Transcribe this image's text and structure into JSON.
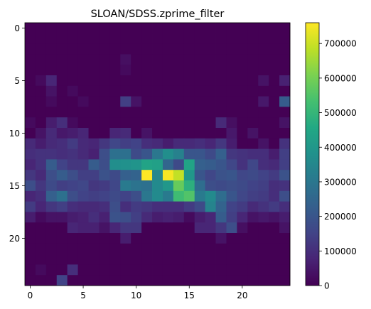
{
  "chart_data": {
    "type": "heatmap",
    "title": "SLOAN/SDSS.zprime_filter",
    "xlabel": "",
    "ylabel": "",
    "rows": 25,
    "cols": 25,
    "x_ticks": [
      0,
      5,
      10,
      15,
      20
    ],
    "y_ticks": [
      0,
      5,
      10,
      15,
      20
    ],
    "colorbar": {
      "min": 0,
      "max": 760000,
      "ticks": [
        0,
        100000,
        200000,
        300000,
        400000,
        500000,
        600000,
        700000
      ],
      "tick_labels": [
        "0",
        "100000",
        "200000",
        "300000",
        "400000",
        "500000",
        "600000",
        "700000"
      ],
      "colormap": "viridis"
    },
    "values": [
      [
        0,
        0,
        0,
        0,
        0,
        0,
        0,
        0,
        0,
        0,
        0,
        0,
        0,
        0,
        0,
        0,
        0,
        0,
        0,
        0,
        0,
        0,
        0,
        0,
        0
      ],
      [
        0,
        0,
        0,
        0,
        0,
        0,
        0,
        0,
        0,
        0,
        0,
        0,
        0,
        0,
        0,
        0,
        0,
        0,
        0,
        0,
        0,
        0,
        0,
        0,
        0
      ],
      [
        0,
        0,
        0,
        0,
        0,
        0,
        0,
        0,
        0,
        0,
        0,
        0,
        0,
        0,
        0,
        0,
        0,
        0,
        0,
        0,
        0,
        0,
        0,
        0,
        0
      ],
      [
        0,
        0,
        0,
        0,
        0,
        0,
        0,
        0,
        0,
        30000,
        0,
        0,
        0,
        0,
        0,
        0,
        0,
        0,
        0,
        0,
        0,
        0,
        0,
        0,
        0
      ],
      [
        0,
        0,
        0,
        0,
        0,
        0,
        0,
        0,
        0,
        20000,
        0,
        0,
        0,
        0,
        0,
        0,
        0,
        0,
        0,
        0,
        0,
        0,
        0,
        0,
        0
      ],
      [
        0,
        20000,
        80000,
        0,
        0,
        0,
        0,
        0,
        0,
        0,
        0,
        0,
        0,
        0,
        0,
        0,
        0,
        0,
        0,
        0,
        0,
        0,
        40000,
        0,
        70000
      ],
      [
        0,
        0,
        40000,
        0,
        20000,
        0,
        0,
        0,
        0,
        0,
        0,
        0,
        0,
        0,
        0,
        0,
        0,
        0,
        0,
        0,
        0,
        0,
        0,
        0,
        0
      ],
      [
        0,
        0,
        20000,
        0,
        0,
        20000,
        0,
        0,
        0,
        140000,
        40000,
        0,
        0,
        0,
        0,
        0,
        0,
        0,
        0,
        0,
        0,
        0,
        50000,
        0,
        220000
      ],
      [
        0,
        0,
        0,
        0,
        0,
        0,
        0,
        0,
        0,
        0,
        0,
        0,
        0,
        0,
        0,
        0,
        0,
        0,
        0,
        0,
        0,
        0,
        0,
        0,
        0
      ],
      [
        20000,
        0,
        60000,
        100000,
        20000,
        0,
        0,
        0,
        0,
        0,
        0,
        0,
        0,
        0,
        0,
        0,
        0,
        0,
        90000,
        30000,
        0,
        0,
        0,
        0,
        40000
      ],
      [
        0,
        40000,
        90000,
        50000,
        60000,
        80000,
        0,
        0,
        80000,
        90000,
        0,
        40000,
        0,
        0,
        0,
        0,
        0,
        0,
        0,
        50000,
        0,
        40000,
        0,
        0,
        0
      ],
      [
        90000,
        60000,
        90000,
        100000,
        130000,
        90000,
        80000,
        120000,
        160000,
        140000,
        150000,
        100000,
        90000,
        60000,
        90000,
        90000,
        100000,
        80000,
        120000,
        60000,
        0,
        0,
        40000,
        0,
        110000
      ],
      [
        100000,
        110000,
        110000,
        100000,
        110000,
        90000,
        70000,
        180000,
        280000,
        280000,
        170000,
        200000,
        300000,
        370000,
        330000,
        200000,
        200000,
        170000,
        230000,
        120000,
        110000,
        100000,
        100000,
        60000,
        140000
      ],
      [
        80000,
        110000,
        220000,
        150000,
        120000,
        120000,
        220000,
        180000,
        370000,
        380000,
        390000,
        440000,
        430000,
        250000,
        170000,
        440000,
        230000,
        220000,
        200000,
        160000,
        110000,
        160000,
        100000,
        90000,
        140000
      ],
      [
        120000,
        90000,
        180000,
        220000,
        180000,
        140000,
        140000,
        190000,
        170000,
        230000,
        240000,
        760000,
        350000,
        750000,
        690000,
        400000,
        200000,
        160000,
        190000,
        200000,
        160000,
        170000,
        150000,
        130000,
        190000
      ],
      [
        180000,
        120000,
        170000,
        140000,
        150000,
        160000,
        120000,
        130000,
        160000,
        310000,
        290000,
        280000,
        360000,
        400000,
        580000,
        480000,
        270000,
        180000,
        170000,
        180000,
        170000,
        150000,
        140000,
        100000,
        110000
      ],
      [
        80000,
        100000,
        230000,
        280000,
        180000,
        150000,
        140000,
        150000,
        170000,
        150000,
        180000,
        300000,
        360000,
        310000,
        520000,
        550000,
        310000,
        360000,
        270000,
        200000,
        160000,
        140000,
        130000,
        100000,
        180000
      ],
      [
        130000,
        80000,
        120000,
        140000,
        100000,
        90000,
        90000,
        100000,
        180000,
        100000,
        130000,
        120000,
        100000,
        100000,
        100000,
        130000,
        170000,
        340000,
        240000,
        150000,
        130000,
        90000,
        110000,
        130000,
        100000
      ],
      [
        60000,
        20000,
        40000,
        40000,
        60000,
        70000,
        100000,
        70000,
        190000,
        180000,
        140000,
        90000,
        60000,
        70000,
        60000,
        20000,
        60000,
        80000,
        220000,
        140000,
        80000,
        40000,
        50000,
        40000,
        60000
      ],
      [
        0,
        0,
        0,
        0,
        80000,
        70000,
        70000,
        40000,
        80000,
        120000,
        120000,
        0,
        0,
        0,
        0,
        0,
        80000,
        80000,
        120000,
        180000,
        30000,
        0,
        0,
        0,
        40000
      ],
      [
        0,
        0,
        0,
        0,
        0,
        0,
        0,
        0,
        0,
        60000,
        0,
        0,
        0,
        0,
        0,
        0,
        0,
        0,
        40000,
        0,
        0,
        0,
        0,
        0,
        0
      ],
      [
        0,
        0,
        0,
        0,
        0,
        0,
        0,
        0,
        0,
        0,
        0,
        0,
        0,
        0,
        0,
        0,
        0,
        0,
        0,
        0,
        0,
        0,
        0,
        0,
        0
      ],
      [
        0,
        0,
        0,
        0,
        0,
        0,
        0,
        0,
        0,
        0,
        0,
        0,
        0,
        0,
        0,
        0,
        0,
        0,
        0,
        0,
        0,
        0,
        0,
        0,
        0
      ],
      [
        0,
        20000,
        0,
        0,
        100000,
        0,
        0,
        0,
        0,
        0,
        0,
        0,
        0,
        0,
        0,
        0,
        0,
        0,
        0,
        0,
        0,
        0,
        0,
        0,
        0
      ],
      [
        0,
        0,
        0,
        150000,
        0,
        0,
        0,
        0,
        0,
        0,
        0,
        0,
        0,
        0,
        0,
        0,
        0,
        0,
        0,
        0,
        0,
        0,
        0,
        0,
        0
      ]
    ]
  }
}
